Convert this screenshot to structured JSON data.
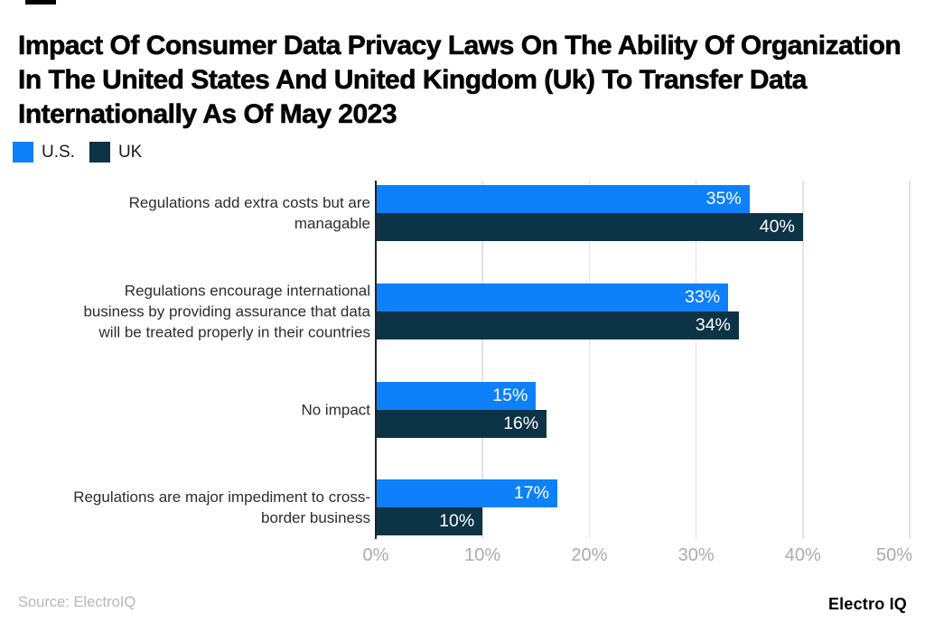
{
  "title": "Impact Of Consumer Data Privacy Laws On The Ability Of Organization In The United States And United Kingdom (Uk) To Transfer Data Internationally As Of May 2023",
  "legend": [
    {
      "label": "U.S.",
      "color": "#0d80fa"
    },
    {
      "label": "UK",
      "color": "#0d3346"
    }
  ],
  "chart_data": {
    "type": "bar",
    "orientation": "horizontal",
    "title": "Impact Of Consumer Data Privacy Laws On The Ability Of Organization In The United States And United Kingdom (Uk) To Transfer Data Internationally As Of May 2023",
    "categories": [
      "Regulations add extra costs but are managable",
      "Regulations encourage international business by providing assurance that data will be treated properly in their countries",
      "No impact",
      "Regulations are major impediment to cross-border business"
    ],
    "categories_wrapped": [
      "Regulations add extra costs but are\nmanagable",
      "Regulations encourage international\nbusiness by providing assurance that data\nwill be treated properly in their countries",
      "No impact",
      "Regulations are major impediment to cross-\nborder business"
    ],
    "series": [
      {
        "name": "U.S.",
        "color": "#0d80fa",
        "values": [
          35,
          33,
          15,
          17
        ]
      },
      {
        "name": "UK",
        "color": "#0d3346",
        "values": [
          40,
          34,
          16,
          10
        ]
      }
    ],
    "value_suffix": "%",
    "x_ticks": [
      "0%",
      "10%",
      "20%",
      "30%",
      "40%",
      "50%"
    ],
    "xlim": [
      0,
      50
    ],
    "grid": true,
    "legend_position": "top-left",
    "value_labels": "inside-end",
    "xlabel": "",
    "ylabel": ""
  },
  "footer": {
    "source": "Source: ElectroIQ",
    "brand": "Electro IQ"
  }
}
